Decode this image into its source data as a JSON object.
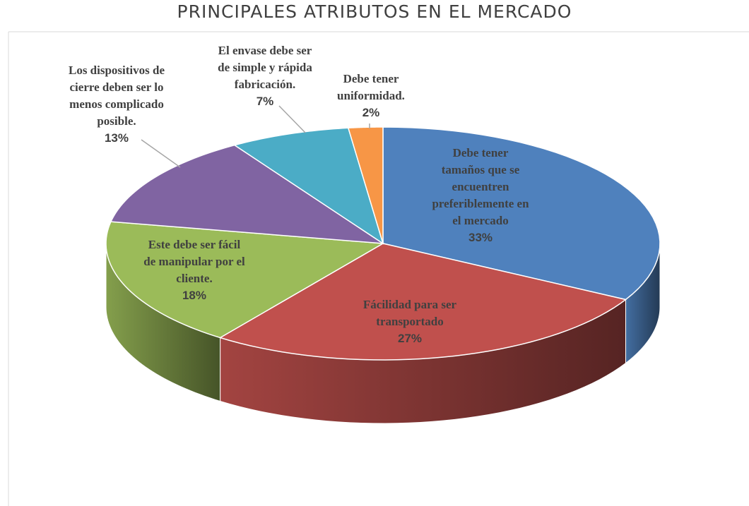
{
  "chart_data": {
    "type": "pie3d",
    "title": "PRINCIPALES ATRIBUTOS EN EL MERCADO",
    "categories": [
      "Debe tener\ntamaños  que se\nencuentren\npreferiblemente en\nel mercado",
      "Fácilidad para ser\ntransportado",
      "Este debe ser fácil\nde manipular por el\ncliente.",
      "Los dispositivos de\ncierre deben ser lo\nmenos complicado\nposible.",
      "El envase debe ser\nde simple y rápida\nfabricación.",
      "Debe tener\nuniformidad."
    ],
    "values": [
      33,
      27,
      18,
      13,
      7,
      2
    ],
    "value_labels": [
      "33%",
      "27%",
      "18%",
      "13%",
      "7%",
      "2%"
    ],
    "colors": [
      "#4f81bd",
      "#c0504d",
      "#9bbb59",
      "#8064a2",
      "#4bacc6",
      "#f79646"
    ]
  }
}
